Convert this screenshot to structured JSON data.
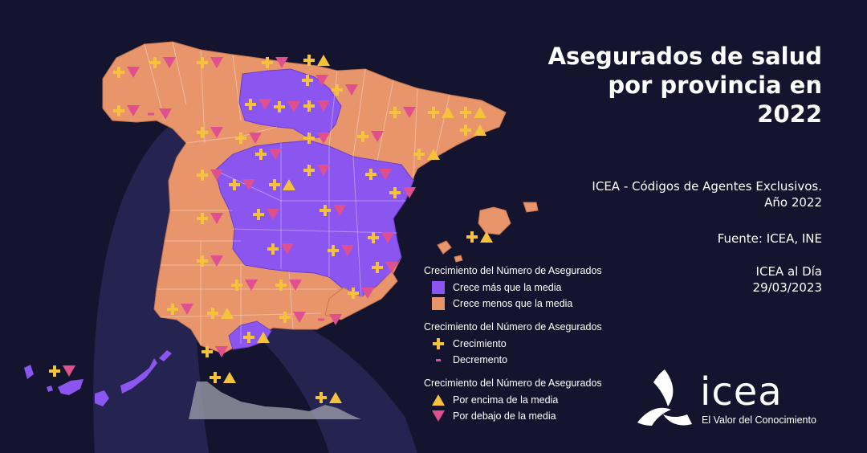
{
  "title": {
    "line1": "Asegurados de salud",
    "line2": "por provincia en",
    "line3": "2022"
  },
  "source_info": {
    "line1": "ICEA - Códigos de Agentes Exclusivos.",
    "line2": "Año 2022",
    "source": "Fuente: ICEA, INE",
    "series": "ICEA al Día",
    "date": "29/03/2023"
  },
  "legend": {
    "fill": {
      "heading": "Crecimiento del Número de Asegurados",
      "items": [
        {
          "label": "Crece más que la media",
          "color": "#8b55f0"
        },
        {
          "label": "Crece menos que la media",
          "color": "#e8956b"
        }
      ]
    },
    "growth": {
      "heading": "Crecimiento del Número de Asegurados",
      "items": [
        {
          "label": "Crecimiento",
          "icon": "plus-icon",
          "color": "#f5c23c"
        },
        {
          "label": "Decremento",
          "icon": "minus-icon",
          "color": "#e0508f"
        }
      ]
    },
    "average": {
      "heading": "Crecimiento del Número de Asegurados",
      "items": [
        {
          "label": "Por encima de la media",
          "icon": "triangle-up-icon",
          "color": "#f5c23c"
        },
        {
          "label": "Por debajo de la media",
          "icon": "triangle-down-icon",
          "color": "#e0508f"
        }
      ]
    }
  },
  "logo": {
    "word": "icea",
    "tagline": "El Valor del Conocimiento"
  },
  "colors": {
    "background": "#15142e",
    "above_average_fill": "#8b55f0",
    "below_average_fill": "#e8956b",
    "growth": "#f5c23c",
    "decline": "#e0508f"
  }
}
